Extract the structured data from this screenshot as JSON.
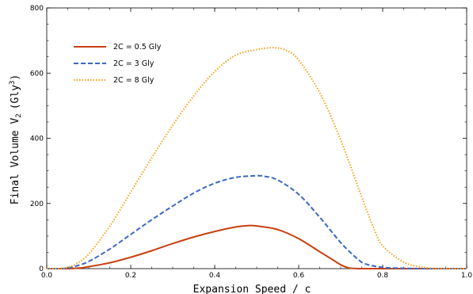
{
  "chart_data": {
    "type": "line",
    "xlabel": "Expansion Speed / c",
    "ylabel": {
      "main": "Final Volume V",
      "sub": "2",
      "unit": "(Gly",
      "sup": "3",
      "close": ")"
    },
    "xlim": [
      0,
      1
    ],
    "ylim": [
      0,
      800
    ],
    "xticks": [
      0.0,
      0.2,
      0.4,
      0.6,
      0.8,
      1.0
    ],
    "xtick_labels": [
      "0.0",
      "0.2",
      "0.4",
      "0.6",
      "0.8",
      "1.0"
    ],
    "yticks": [
      0,
      200,
      400,
      600,
      800
    ],
    "ytick_labels": [
      "0",
      "200",
      "400",
      "600",
      "800"
    ],
    "grid": false,
    "legend_position": "top-left",
    "series": [
      {
        "name": "2C = 0.5 Gly",
        "color": "#c8400f",
        "style": "solid",
        "x": [
          0.0,
          0.05,
          0.08,
          0.1,
          0.15,
          0.2,
          0.25,
          0.3,
          0.35,
          0.4,
          0.45,
          0.48,
          0.5,
          0.55,
          0.6,
          0.65,
          0.68,
          0.7,
          0.72,
          0.75,
          0.8,
          0.9,
          1.0
        ],
        "y": [
          0,
          0,
          2,
          6,
          18,
          35,
          55,
          77,
          97,
          114,
          128,
          132,
          131,
          120,
          92,
          52,
          28,
          12,
          2,
          0,
          0,
          0,
          0
        ]
      },
      {
        "name": "2C = 3 Gly",
        "color": "#3a69c2",
        "style": "dashed",
        "x": [
          0.0,
          0.03,
          0.05,
          0.07,
          0.1,
          0.15,
          0.2,
          0.25,
          0.3,
          0.35,
          0.4,
          0.45,
          0.5,
          0.52,
          0.55,
          0.6,
          0.65,
          0.7,
          0.74,
          0.76,
          0.8,
          0.85,
          0.9,
          1.0
        ],
        "y": [
          0,
          0,
          2,
          8,
          22,
          60,
          105,
          150,
          192,
          232,
          262,
          280,
          285,
          283,
          272,
          228,
          158,
          80,
          30,
          14,
          4,
          1,
          0,
          0
        ]
      },
      {
        "name": "2C = 8 Gly",
        "color": "#f5a21b",
        "style": "dotted",
        "x": [
          0.0,
          0.03,
          0.05,
          0.07,
          0.1,
          0.15,
          0.2,
          0.25,
          0.3,
          0.35,
          0.4,
          0.45,
          0.5,
          0.54,
          0.57,
          0.6,
          0.65,
          0.7,
          0.75,
          0.78,
          0.8,
          0.85,
          0.9,
          0.95,
          1.0
        ],
        "y": [
          0,
          0,
          4,
          15,
          45,
          130,
          235,
          340,
          440,
          530,
          605,
          655,
          672,
          678,
          670,
          640,
          540,
          395,
          220,
          120,
          70,
          20,
          3,
          0,
          0
        ]
      }
    ]
  }
}
